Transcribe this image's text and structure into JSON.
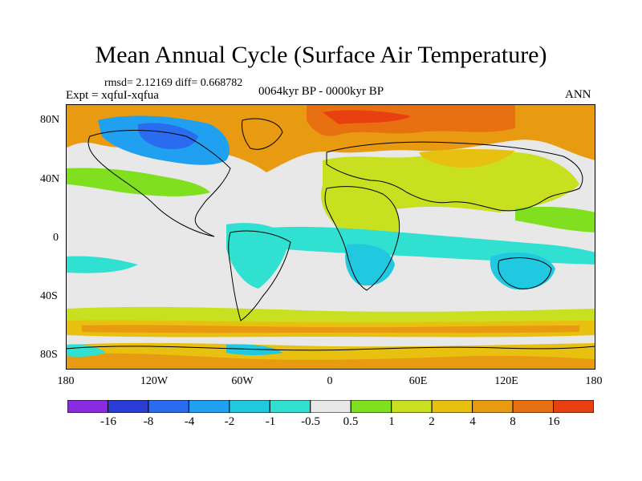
{
  "title": "Mean Annual Cycle (Surface Air Temperature)",
  "stats": "rmsd= 2.12169 diff= 0.668782",
  "experiment": "Expt = xqfuI-xqfua",
  "period": "0064kyr BP - 0000kyr BP",
  "season": "ANN",
  "lat_labels": [
    "80N",
    "40N",
    "0",
    "40S",
    "80S"
  ],
  "lon_labels": [
    "180",
    "120W",
    "60W",
    "0",
    "60E",
    "120E",
    "180"
  ],
  "colorbar": {
    "colors": [
      "#8a2be2",
      "#2a3bd6",
      "#2a6cf0",
      "#20a0f0",
      "#20c8e0",
      "#30e0d0",
      "#e8e8e8",
      "#80e020",
      "#c8e020",
      "#e8c010",
      "#e89a10",
      "#e87010",
      "#e84010"
    ],
    "labels": [
      "-16",
      "-8",
      "-4",
      "-2",
      "-1",
      "-0.5",
      "0.5",
      "1",
      "2",
      "4",
      "8",
      "16"
    ]
  }
}
